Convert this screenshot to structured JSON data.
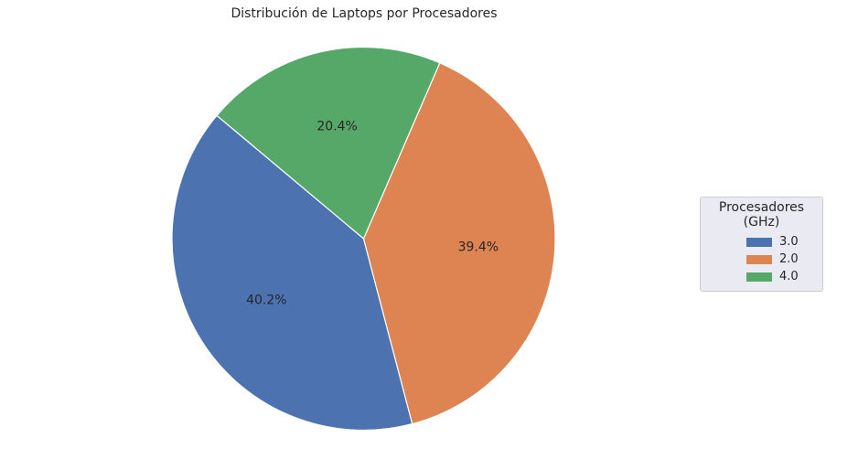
{
  "chart_data": {
    "type": "pie",
    "title": "Distribución de Laptops por Procesadores",
    "legend_title": "Procesadores (GHz)",
    "legend_position": "right",
    "start_angle_deg": 140,
    "direction": "counterclockwise",
    "slices": [
      {
        "label": "3.0",
        "value": 40.2,
        "display": "40.2%",
        "color": "#4c72b0"
      },
      {
        "label": "2.0",
        "value": 39.4,
        "display": "39.4%",
        "color": "#dd8452"
      },
      {
        "label": "4.0",
        "value": 20.4,
        "display": "20.4%",
        "color": "#55a868"
      }
    ]
  }
}
